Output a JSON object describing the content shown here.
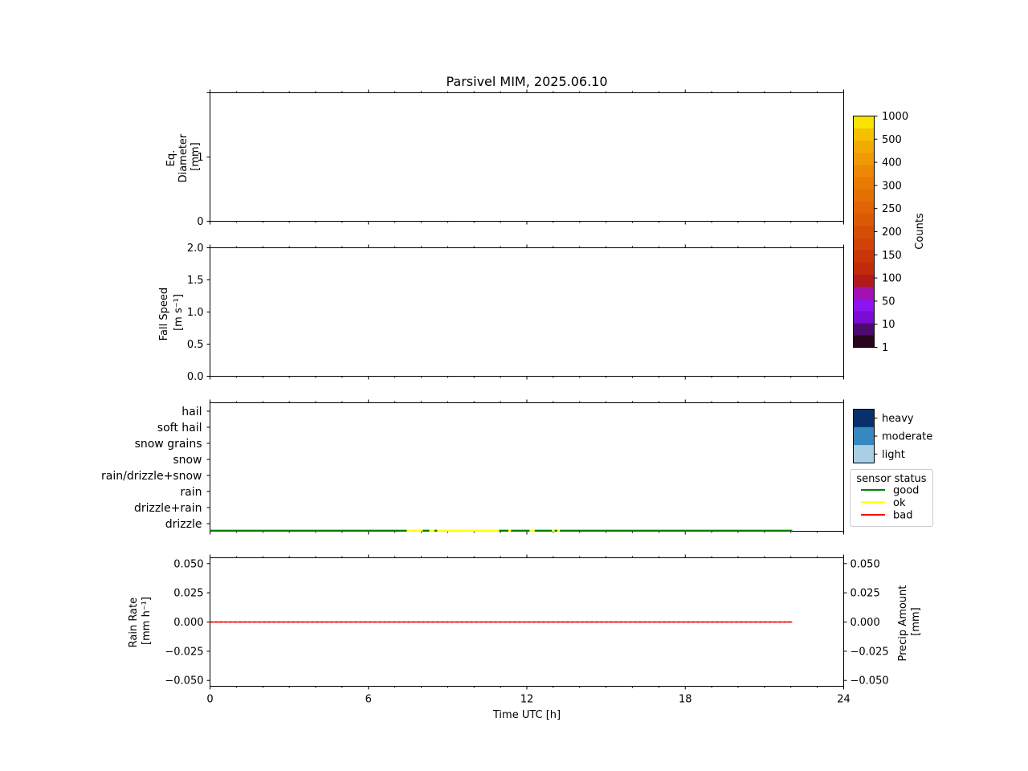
{
  "title": "Parsivel MIM, 2025.06.10",
  "xlabel": "Time UTC [h]",
  "x_ticks": [
    0,
    6,
    12,
    18,
    24
  ],
  "panels": {
    "diameter": {
      "ylabel_lines": [
        "Eq.",
        "Diameter",
        "[mm]"
      ],
      "y_ticks": [
        "0",
        "1"
      ]
    },
    "fall_speed": {
      "ylabel_lines": [
        "Fall Speed",
        "[m s⁻¹]"
      ],
      "y_ticks": [
        "0.0",
        "0.5",
        "1.0",
        "1.5",
        "2.0"
      ]
    },
    "precip_type": {
      "y_categories": [
        "drizzle",
        "drizzle+rain",
        "rain",
        "rain/drizzle+snow",
        "snow",
        "snow grains",
        "soft hail",
        "hail"
      ]
    },
    "rain": {
      "ylabel_lines": [
        "Rain Rate",
        "[mm h⁻¹]"
      ],
      "ylabel_right_lines": [
        "Precip Amount",
        "[mm]"
      ],
      "y_ticks": [
        "−0.050",
        "−0.025",
        "0.000",
        "0.025",
        "0.050"
      ]
    }
  },
  "colorbar": {
    "label": "Counts",
    "tick_labels": [
      "1",
      "10",
      "50",
      "100",
      "150",
      "200",
      "250",
      "300",
      "400",
      "500",
      "1000"
    ],
    "colors": [
      "#28051e",
      "#4f0a6e",
      "#7a0cd6",
      "#8c14f0",
      "#a210b0",
      "#b21a1a",
      "#c42a0a",
      "#ca3608",
      "#d04206",
      "#d64e05",
      "#dc5a04",
      "#e06404",
      "#e47004",
      "#e87a04",
      "#ec8804",
      "#ef9a03",
      "#f1aa02",
      "#f4c000",
      "#f8e400"
    ]
  },
  "intensity_legend": {
    "labels": [
      "heavy",
      "moderate",
      "light"
    ],
    "colors": [
      "#08306b",
      "#3787c0",
      "#a9cfe5"
    ]
  },
  "status_legend": {
    "title": "sensor status",
    "items": [
      {
        "label": "good",
        "color": "#008000"
      },
      {
        "label": "ok",
        "color": "#ffff00"
      },
      {
        "label": "bad",
        "color": "#ff0000"
      }
    ]
  },
  "chart_data": [
    {
      "type": "heatmap",
      "title": "Parsivel MIM, 2025.06.10",
      "xlabel": "",
      "ylabel": "Eq. Diameter [mm]",
      "xlim": [
        0,
        24
      ],
      "ylim": [
        0,
        2
      ],
      "values": [],
      "colorbar_label": "Counts"
    },
    {
      "type": "heatmap",
      "xlabel": "",
      "ylabel": "Fall Speed [m s⁻¹]",
      "xlim": [
        0,
        24
      ],
      "ylim": [
        0,
        2
      ],
      "values": [],
      "colorbar_label": "Counts"
    },
    {
      "type": "line",
      "xlim": [
        0,
        24
      ],
      "categories": [
        "drizzle",
        "drizzle+rain",
        "rain",
        "rain/drizzle+snow",
        "snow",
        "snow grains",
        "soft hail",
        "hail"
      ],
      "sensor_status": {
        "good": [
          [
            0,
            7.45
          ],
          [
            8.05,
            8.3
          ],
          [
            8.5,
            8.6
          ],
          [
            10.95,
            11.3
          ],
          [
            11.4,
            12.1
          ],
          [
            12.3,
            12.95
          ],
          [
            13.05,
            13.15
          ],
          [
            13.25,
            22.05
          ]
        ],
        "ok": [
          [
            7.45,
            8.05
          ],
          [
            8.3,
            8.5
          ],
          [
            8.6,
            10.95
          ],
          [
            11.3,
            11.4
          ],
          [
            12.1,
            12.3
          ],
          [
            12.95,
            13.05
          ],
          [
            13.15,
            13.25
          ]
        ]
      }
    },
    {
      "type": "line",
      "xlabel": "Time UTC [h]",
      "ylabel": "Rain Rate [mm h⁻¹]",
      "ylabel_right": "Precip Amount [mm]",
      "xlim": [
        0,
        24
      ],
      "ylim": [
        -0.055,
        0.055
      ],
      "series": [
        {
          "x": [
            0,
            22.05
          ],
          "values": [
            0,
            0
          ]
        },
        {
          "x": [
            0,
            22.05
          ],
          "values": [
            0,
            0
          ]
        }
      ]
    }
  ]
}
